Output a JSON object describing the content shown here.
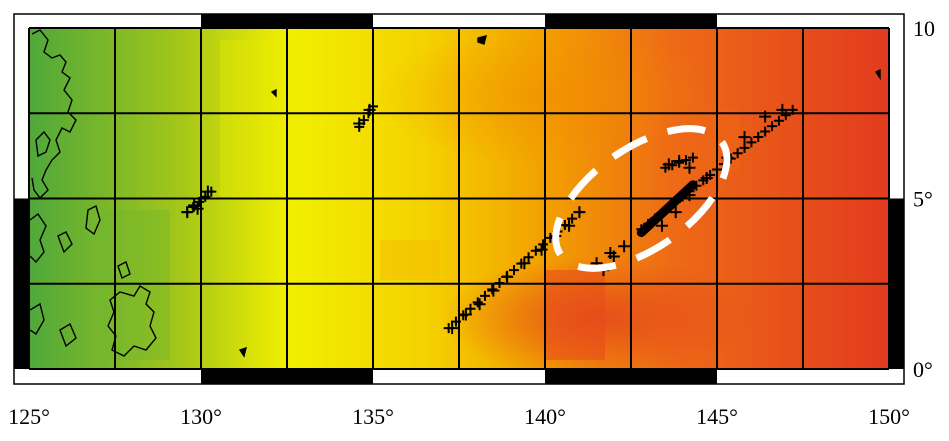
{
  "map": {
    "lon_range": [
      125,
      150
    ],
    "lat_range": [
      0,
      10
    ],
    "grid_step_lon": 2.5,
    "grid_step_lat": 2.5,
    "x_ticks": [
      {
        "value": 125,
        "label": "125°"
      },
      {
        "value": 130,
        "label": "130°"
      },
      {
        "value": 135,
        "label": "135°"
      },
      {
        "value": 140,
        "label": "140°"
      },
      {
        "value": 145,
        "label": "145°"
      },
      {
        "value": 150,
        "label": "150°"
      }
    ],
    "y_ticks": [
      {
        "value": 0,
        "label": "0°"
      },
      {
        "value": 5,
        "label": "5°"
      },
      {
        "value": 10,
        "label": "10"
      }
    ],
    "colors": {
      "green": "#4fa83b",
      "yellow": "#f2ef00",
      "orange": "#f2a000",
      "red": "#e23b1e",
      "grid": "#000000",
      "dashed_outline": "#ffffff",
      "frame_band": "#000000"
    },
    "legend": null,
    "features": {
      "coastlines": true,
      "crosses_marker": "+",
      "dashed_ellipse": true
    },
    "sample_points": {
      "crosses": [
        [
          130.0,
          5.0
        ],
        [
          129.8,
          4.8
        ],
        [
          129.6,
          4.6
        ],
        [
          130.2,
          5.2
        ],
        [
          129.9,
          4.7
        ],
        [
          141.0,
          4.6
        ],
        [
          140.7,
          4.2
        ],
        [
          140.3,
          3.9
        ],
        [
          139.9,
          3.5
        ],
        [
          139.4,
          3.1
        ],
        [
          138.9,
          2.7
        ],
        [
          138.5,
          2.3
        ],
        [
          138.1,
          1.9
        ],
        [
          137.7,
          1.6
        ],
        [
          137.3,
          1.2
        ],
        [
          143.4,
          4.2
        ],
        [
          143.8,
          4.6
        ],
        [
          144.2,
          5.1
        ],
        [
          144.7,
          5.6
        ],
        [
          145.3,
          6.2
        ],
        [
          145.8,
          6.8
        ],
        [
          146.4,
          7.4
        ],
        [
          146.9,
          7.6
        ],
        [
          142.0,
          3.3
        ],
        [
          141.7,
          2.9
        ],
        [
          134.9,
          7.6
        ],
        [
          134.6,
          7.2
        ],
        [
          143.6,
          6.0
        ],
        [
          143.9,
          6.1
        ],
        [
          144.2,
          5.9
        ],
        [
          141.5,
          3.1
        ],
        [
          142.3,
          3.6
        ],
        [
          141.9,
          3.4
        ]
      ],
      "dashed_ellipse_center_lon": 142.8,
      "dashed_ellipse_center_lat": 5.0,
      "dashed_ellipse_rx_deg": 5.5,
      "dashed_ellipse_ry_deg": 3.5,
      "dashed_ellipse_rotation": -35
    }
  }
}
